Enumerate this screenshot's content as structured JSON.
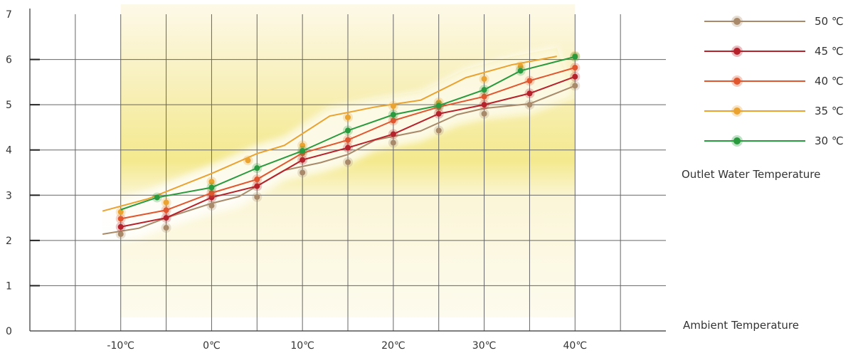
{
  "chart_data": {
    "type": "line",
    "xlabel": "Ambient  Temperature",
    "legend_title": "Outlet Water  Temperature",
    "legend_position": "right",
    "grid": true,
    "xlim": [
      -20,
      50
    ],
    "ylim": [
      0,
      7
    ],
    "x_ticks": [
      {
        "value": -10,
        "label": "-10℃"
      },
      {
        "value": 0,
        "label": "0℃"
      },
      {
        "value": 10,
        "label": "10℃"
      },
      {
        "value": 20,
        "label": "20℃"
      },
      {
        "value": 30,
        "label": "30℃"
      },
      {
        "value": 40,
        "label": "40℃"
      }
    ],
    "y_ticks": [
      {
        "value": 0,
        "label": "0"
      },
      {
        "value": 1,
        "label": "1"
      },
      {
        "value": 2,
        "label": "2"
      },
      {
        "value": 3,
        "label": "3"
      },
      {
        "value": 4,
        "label": "4"
      },
      {
        "value": 5,
        "label": "5"
      },
      {
        "value": 6,
        "label": "6"
      },
      {
        "value": 7,
        "label": "7"
      }
    ],
    "series": [
      {
        "name": "50 ℃",
        "color": "#a88a6a",
        "line": [
          [
            -12,
            2.14
          ],
          [
            -8,
            2.27
          ],
          [
            -5,
            2.5
          ],
          [
            0,
            2.82
          ],
          [
            3,
            2.97
          ],
          [
            8,
            3.55
          ],
          [
            12,
            3.72
          ],
          [
            15,
            3.9
          ],
          [
            18,
            4.22
          ],
          [
            23,
            4.42
          ],
          [
            27,
            4.78
          ],
          [
            30,
            4.92
          ],
          [
            35,
            5.02
          ],
          [
            40,
            5.42
          ]
        ],
        "points": [
          [
            -10,
            2.14
          ],
          [
            -5,
            2.28
          ],
          [
            0,
            2.77
          ],
          [
            5,
            2.96
          ],
          [
            10,
            3.5
          ],
          [
            15,
            3.73
          ],
          [
            20,
            4.16
          ],
          [
            25,
            4.43
          ],
          [
            30,
            4.8
          ],
          [
            35,
            5.0
          ],
          [
            40,
            5.42
          ]
        ]
      },
      {
        "name": "45 ℃",
        "color": "#b5222c",
        "line": [
          [
            -10,
            2.3
          ],
          [
            -5,
            2.5
          ],
          [
            0,
            2.95
          ],
          [
            5,
            3.2
          ],
          [
            10,
            3.78
          ],
          [
            15,
            4.05
          ],
          [
            20,
            4.35
          ],
          [
            25,
            4.8
          ],
          [
            30,
            5.0
          ],
          [
            35,
            5.25
          ],
          [
            40,
            5.62
          ]
        ],
        "points": [
          [
            -10,
            2.3
          ],
          [
            -5,
            2.5
          ],
          [
            0,
            2.95
          ],
          [
            5,
            3.2
          ],
          [
            10,
            3.78
          ],
          [
            15,
            4.05
          ],
          [
            20,
            4.35
          ],
          [
            25,
            4.8
          ],
          [
            30,
            5.0
          ],
          [
            35,
            5.25
          ],
          [
            40,
            5.62
          ]
        ]
      },
      {
        "name": "40 ℃",
        "color": "#e0562e",
        "line": [
          [
            -10,
            2.48
          ],
          [
            -5,
            2.67
          ],
          [
            0,
            3.05
          ],
          [
            5,
            3.35
          ],
          [
            10,
            3.93
          ],
          [
            15,
            4.22
          ],
          [
            20,
            4.65
          ],
          [
            25,
            4.95
          ],
          [
            30,
            5.18
          ],
          [
            35,
            5.53
          ],
          [
            40,
            5.82
          ]
        ],
        "points": [
          [
            -10,
            2.48
          ],
          [
            -5,
            2.67
          ],
          [
            0,
            3.05
          ],
          [
            5,
            3.35
          ],
          [
            10,
            3.93
          ],
          [
            15,
            4.22
          ],
          [
            20,
            4.65
          ],
          [
            25,
            4.95
          ],
          [
            30,
            5.18
          ],
          [
            35,
            5.53
          ],
          [
            40,
            5.82
          ]
        ]
      },
      {
        "name": "35 ℃",
        "color": "#eaa230",
        "line": [
          [
            -12,
            2.65
          ],
          [
            -7,
            2.92
          ],
          [
            0,
            3.48
          ],
          [
            5,
            3.92
          ],
          [
            8,
            4.1
          ],
          [
            13,
            4.75
          ],
          [
            18,
            4.95
          ],
          [
            23,
            5.1
          ],
          [
            28,
            5.6
          ],
          [
            33,
            5.88
          ],
          [
            38,
            6.07
          ]
        ],
        "points": [
          [
            -10,
            2.63
          ],
          [
            -5,
            2.84
          ],
          [
            0,
            3.3
          ],
          [
            4,
            3.77
          ],
          [
            10,
            4.1
          ],
          [
            15,
            4.72
          ],
          [
            20,
            4.97
          ],
          [
            25,
            5.05
          ],
          [
            30,
            5.57
          ],
          [
            34,
            5.85
          ],
          [
            40,
            6.08
          ]
        ]
      },
      {
        "name": "30 ℃",
        "color": "#2a9a3e",
        "line": [
          [
            -10,
            2.68
          ],
          [
            -6,
            2.95
          ],
          [
            0,
            3.17
          ],
          [
            5,
            3.6
          ],
          [
            10,
            3.98
          ],
          [
            15,
            4.43
          ],
          [
            20,
            4.78
          ],
          [
            25,
            4.98
          ],
          [
            30,
            5.33
          ],
          [
            34,
            5.75
          ],
          [
            40,
            6.06
          ]
        ],
        "points": [
          [
            -6,
            2.95
          ],
          [
            0,
            3.17
          ],
          [
            5,
            3.6
          ],
          [
            10,
            3.98
          ],
          [
            15,
            4.43
          ],
          [
            20,
            4.78
          ],
          [
            25,
            4.98
          ],
          [
            30,
            5.33
          ],
          [
            34,
            5.75
          ],
          [
            40,
            6.06
          ]
        ]
      }
    ]
  }
}
